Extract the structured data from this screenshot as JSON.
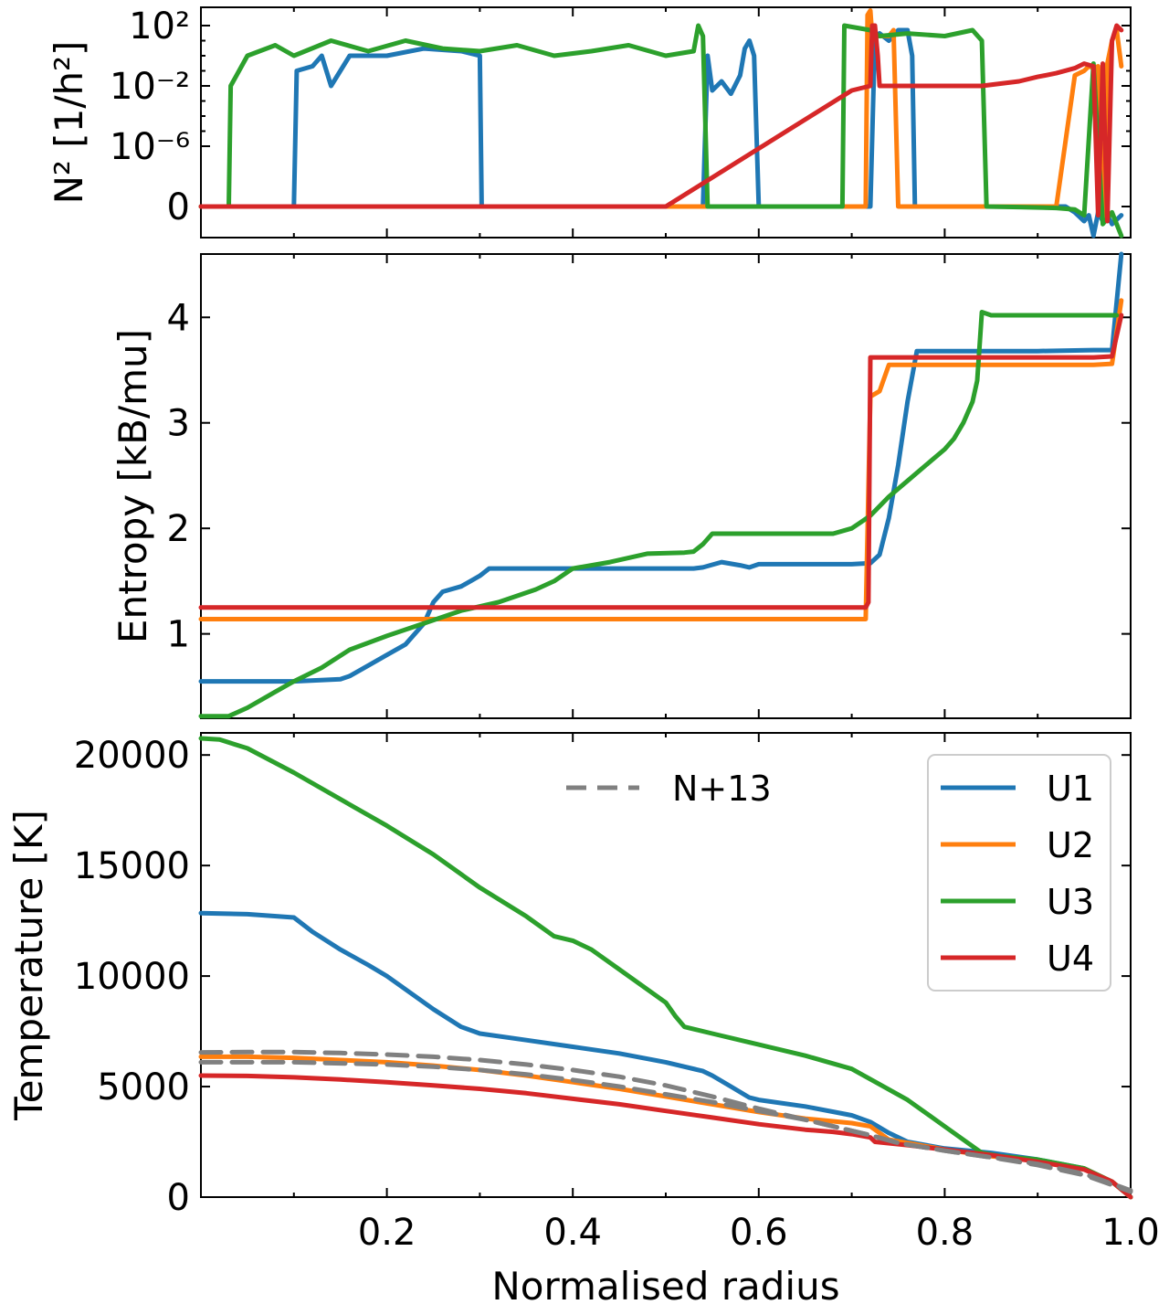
{
  "chart_data": [
    {
      "type": "line",
      "panel": "top",
      "ylabel": "N² [1/h²]",
      "yscale": "symlog",
      "ytick_labels": [
        "0",
        "10⁻⁶",
        "10⁻²",
        "10²"
      ],
      "ytick_values": [
        0,
        1e-06,
        0.01,
        100
      ],
      "xlim": [
        0,
        1.0
      ],
      "legend": "none",
      "series": [
        {
          "key": "U1",
          "color": "#1f77b4",
          "x": [
            0.0,
            0.1,
            0.103,
            0.12,
            0.13,
            0.14,
            0.16,
            0.2,
            0.24,
            0.28,
            0.3,
            0.302,
            0.5,
            0.54,
            0.545,
            0.55,
            0.56,
            0.57,
            0.58,
            0.585,
            0.59,
            0.595,
            0.6,
            0.7,
            0.72,
            0.725,
            0.73,
            0.74,
            0.75,
            0.76,
            0.765,
            0.768,
            0.84,
            0.92,
            0.93,
            0.94,
            0.95,
            0.955,
            0.96,
            0.965,
            0.97,
            0.975,
            0.98,
            0.99
          ],
          "y": [
            0,
            0,
            0.1,
            0.2,
            1,
            0.01,
            1,
            1,
            3,
            2,
            1,
            0,
            0,
            0,
            1,
            0.005,
            0.02,
            0.003,
            0.05,
            3,
            10,
            1,
            0,
            0,
            0,
            20,
            30,
            10,
            50,
            50,
            1,
            0,
            0,
            0,
            0,
            -0.2,
            -0.5,
            -0.3,
            -1,
            -0.2,
            -0.5,
            -0.3,
            -0.6,
            -0.3
          ]
        },
        {
          "key": "U2",
          "color": "#ff7f0e",
          "x": [
            0.0,
            0.7,
            0.715,
            0.717,
            0.72,
            0.722,
            0.74,
            0.745,
            0.75,
            0.84,
            0.9,
            0.92,
            0.94,
            0.95,
            0.955,
            0.96,
            0.965,
            0.97,
            0.975,
            0.98,
            0.985,
            0.99
          ],
          "y": [
            0,
            0,
            0,
            500,
            1000,
            20,
            20,
            50,
            0,
            0,
            0,
            0,
            0.05,
            0.1,
            0.2,
            0.15,
            0.2,
            -0.5,
            0.3,
            10,
            50,
            0.2
          ]
        },
        {
          "key": "U3",
          "color": "#2ca02c",
          "x": [
            0.0,
            0.03,
            0.032,
            0.05,
            0.08,
            0.1,
            0.14,
            0.18,
            0.22,
            0.26,
            0.3,
            0.34,
            0.38,
            0.42,
            0.46,
            0.5,
            0.53,
            0.535,
            0.54,
            0.545,
            0.69,
            0.692,
            0.72,
            0.73,
            0.76,
            0.8,
            0.83,
            0.84,
            0.845,
            0.88,
            0.92,
            0.94,
            0.95,
            0.96,
            0.97,
            0.98,
            0.99
          ],
          "y": [
            0,
            0,
            0.01,
            1,
            5,
            1,
            10,
            2,
            10,
            3,
            2,
            5,
            1,
            2,
            5,
            1,
            2,
            100,
            20,
            0,
            0,
            100,
            50,
            20,
            30,
            20,
            50,
            10,
            0,
            -0.02,
            -0.05,
            -0.1,
            -0.3,
            0.3,
            -0.6,
            -0.2,
            -1
          ]
        },
        {
          "key": "U4",
          "color": "#d62728",
          "x": [
            0.0,
            0.5,
            0.7,
            0.72,
            0.722,
            0.725,
            0.728,
            0.73,
            0.76,
            0.84,
            0.88,
            0.9,
            0.92,
            0.94,
            0.95,
            0.96,
            0.965,
            0.97,
            0.975,
            0.98,
            0.985,
            0.99
          ],
          "y": [
            0,
            0,
            0.005,
            0.01,
            100,
            100,
            1,
            0.01,
            0.01,
            0.01,
            0.02,
            0.04,
            0.07,
            0.15,
            0.3,
            0.2,
            -0.3,
            0.3,
            -0.5,
            10,
            100,
            50
          ]
        }
      ]
    },
    {
      "type": "line",
      "panel": "middle",
      "ylabel": "Entropy [kB/mu]",
      "ylim": [
        0.2,
        4.6
      ],
      "yticks": [
        1,
        2,
        3,
        4
      ],
      "xlim": [
        0,
        1.0
      ],
      "legend": "none",
      "series": [
        {
          "key": "U1",
          "color": "#1f77b4",
          "x": [
            0.0,
            0.1,
            0.15,
            0.16,
            0.18,
            0.2,
            0.22,
            0.24,
            0.25,
            0.26,
            0.28,
            0.29,
            0.3,
            0.31,
            0.4,
            0.5,
            0.53,
            0.54,
            0.56,
            0.58,
            0.59,
            0.6,
            0.7,
            0.72,
            0.73,
            0.74,
            0.75,
            0.76,
            0.77,
            0.8,
            0.9,
            0.96,
            0.98,
            0.99
          ],
          "y": [
            0.55,
            0.55,
            0.57,
            0.6,
            0.7,
            0.8,
            0.9,
            1.1,
            1.3,
            1.4,
            1.45,
            1.5,
            1.55,
            1.62,
            1.62,
            1.62,
            1.62,
            1.63,
            1.68,
            1.65,
            1.63,
            1.66,
            1.66,
            1.67,
            1.75,
            2.1,
            2.6,
            3.2,
            3.68,
            3.68,
            3.68,
            3.69,
            3.69,
            4.6
          ]
        },
        {
          "key": "U2",
          "color": "#ff7f0e",
          "x": [
            0.0,
            0.3,
            0.5,
            0.71,
            0.715,
            0.72,
            0.73,
            0.74,
            0.76,
            0.8,
            0.9,
            0.96,
            0.98,
            0.99
          ],
          "y": [
            1.14,
            1.14,
            1.14,
            1.14,
            1.14,
            3.25,
            3.3,
            3.55,
            3.55,
            3.55,
            3.55,
            3.55,
            3.56,
            4.16
          ]
        },
        {
          "key": "U3",
          "color": "#2ca02c",
          "x": [
            0.0,
            0.03,
            0.05,
            0.08,
            0.1,
            0.13,
            0.16,
            0.2,
            0.24,
            0.28,
            0.32,
            0.36,
            0.38,
            0.4,
            0.44,
            0.48,
            0.52,
            0.53,
            0.54,
            0.55,
            0.58,
            0.65,
            0.68,
            0.7,
            0.71,
            0.72,
            0.74,
            0.76,
            0.78,
            0.8,
            0.81,
            0.82,
            0.825,
            0.83,
            0.835,
            0.84,
            0.85,
            0.9,
            0.96,
            0.985
          ],
          "y": [
            0.22,
            0.22,
            0.3,
            0.45,
            0.55,
            0.68,
            0.85,
            0.98,
            1.1,
            1.22,
            1.3,
            1.42,
            1.5,
            1.62,
            1.68,
            1.76,
            1.77,
            1.78,
            1.85,
            1.95,
            1.95,
            1.95,
            1.95,
            2.0,
            2.06,
            2.12,
            2.3,
            2.45,
            2.6,
            2.75,
            2.85,
            3.0,
            3.1,
            3.2,
            3.4,
            4.05,
            4.02,
            4.02,
            4.02,
            4.02
          ]
        },
        {
          "key": "U4",
          "color": "#d62728",
          "x": [
            0.0,
            0.3,
            0.5,
            0.715,
            0.718,
            0.72,
            0.73,
            0.76,
            0.8,
            0.9,
            0.96,
            0.98,
            0.99
          ],
          "y": [
            1.25,
            1.25,
            1.25,
            1.25,
            1.3,
            3.62,
            3.62,
            3.62,
            3.62,
            3.62,
            3.62,
            3.63,
            4.02
          ]
        }
      ]
    },
    {
      "type": "line",
      "panel": "bottom",
      "ylabel": "Temperature [K]",
      "xlabel": "Normalised radius",
      "ylim": [
        0,
        21000
      ],
      "yticks": [
        0,
        5000,
        10000,
        15000,
        20000
      ],
      "xlim": [
        0,
        1.0
      ],
      "xticks": [
        0.2,
        0.4,
        0.6,
        0.8,
        1.0
      ],
      "xtick_labels": [
        "0.2",
        "0.4",
        "0.6",
        "0.8",
        "1.0"
      ],
      "legend": "top-right",
      "series": [
        {
          "name": "U1",
          "color": "#1f77b4",
          "x": [
            0.0,
            0.05,
            0.1,
            0.12,
            0.15,
            0.18,
            0.2,
            0.25,
            0.28,
            0.3,
            0.35,
            0.4,
            0.45,
            0.5,
            0.54,
            0.55,
            0.57,
            0.59,
            0.6,
            0.65,
            0.7,
            0.72,
            0.74,
            0.76,
            0.8,
            0.85,
            0.9,
            0.95,
            0.98,
            1.0
          ],
          "y": [
            12850,
            12800,
            12650,
            12000,
            11200,
            10500,
            10000,
            8500,
            7700,
            7400,
            7100,
            6800,
            6500,
            6100,
            5700,
            5500,
            5000,
            4500,
            4400,
            4100,
            3700,
            3400,
            2900,
            2500,
            2200,
            2000,
            1700,
            1300,
            700,
            0
          ]
        },
        {
          "name": "U2",
          "color": "#ff7f0e",
          "x": [
            0.0,
            0.05,
            0.1,
            0.15,
            0.2,
            0.25,
            0.3,
            0.35,
            0.4,
            0.45,
            0.5,
            0.55,
            0.6,
            0.65,
            0.7,
            0.72,
            0.74,
            0.76,
            0.8,
            0.85,
            0.9,
            0.95,
            0.98,
            1.0
          ],
          "y": [
            6350,
            6350,
            6300,
            6200,
            6100,
            5950,
            5750,
            5500,
            5200,
            4900,
            4550,
            4200,
            3850,
            3550,
            3350,
            3200,
            2600,
            2450,
            2150,
            1850,
            1650,
            1300,
            700,
            0
          ]
        },
        {
          "name": "U3",
          "color": "#2ca02c",
          "x": [
            0.0,
            0.02,
            0.05,
            0.1,
            0.15,
            0.2,
            0.25,
            0.3,
            0.35,
            0.38,
            0.4,
            0.42,
            0.45,
            0.5,
            0.51,
            0.52,
            0.55,
            0.6,
            0.65,
            0.7,
            0.73,
            0.76,
            0.8,
            0.84,
            0.86,
            0.9,
            0.95,
            0.98,
            1.0
          ],
          "y": [
            20750,
            20700,
            20300,
            19200,
            18000,
            16800,
            15500,
            14000,
            12700,
            11800,
            11600,
            11200,
            10300,
            8800,
            8200,
            7700,
            7400,
            6900,
            6400,
            5800,
            5100,
            4400,
            3200,
            2000,
            1850,
            1700,
            1300,
            700,
            0
          ]
        },
        {
          "name": "U4",
          "color": "#d62728",
          "x": [
            0.0,
            0.05,
            0.1,
            0.15,
            0.2,
            0.25,
            0.3,
            0.35,
            0.4,
            0.45,
            0.5,
            0.55,
            0.6,
            0.65,
            0.68,
            0.7,
            0.72,
            0.725,
            0.76,
            0.8,
            0.85,
            0.9,
            0.95,
            0.98,
            1.0
          ],
          "y": [
            5500,
            5480,
            5420,
            5320,
            5200,
            5050,
            4900,
            4700,
            4450,
            4200,
            3900,
            3600,
            3300,
            3050,
            2950,
            2850,
            2700,
            2500,
            2350,
            2150,
            1900,
            1600,
            1250,
            700,
            0
          ]
        },
        {
          "name": "N+13",
          "color": "#808080",
          "dashed": true,
          "x": [
            0.0,
            0.05,
            0.1,
            0.15,
            0.2,
            0.25,
            0.3,
            0.35,
            0.4,
            0.45,
            0.5,
            0.55,
            0.6,
            0.65,
            0.7,
            0.72,
            0.75,
            0.8,
            0.85,
            0.9,
            0.95,
            1.0
          ],
          "y": [
            6550,
            6560,
            6560,
            6520,
            6450,
            6350,
            6200,
            6000,
            5750,
            5450,
            5050,
            4550,
            4000,
            3500,
            3000,
            2800,
            2450,
            2100,
            1800,
            1500,
            1050,
            300
          ]
        },
        {
          "name": "N+13",
          "color": "#808080",
          "dashed": true,
          "hide_from_legend": true,
          "x": [
            0.0,
            0.05,
            0.1,
            0.15,
            0.2,
            0.25,
            0.3,
            0.35,
            0.4,
            0.45,
            0.5,
            0.55,
            0.6,
            0.65,
            0.7,
            0.72,
            0.75,
            0.8,
            0.85,
            0.9,
            0.95,
            1.0
          ],
          "y": [
            6100,
            6100,
            6100,
            6050,
            6000,
            5900,
            5750,
            5550,
            5300,
            5000,
            4650,
            4300,
            3900,
            3500,
            3000,
            2800,
            2450,
            2100,
            1800,
            1450,
            1000,
            250
          ]
        }
      ]
    }
  ]
}
